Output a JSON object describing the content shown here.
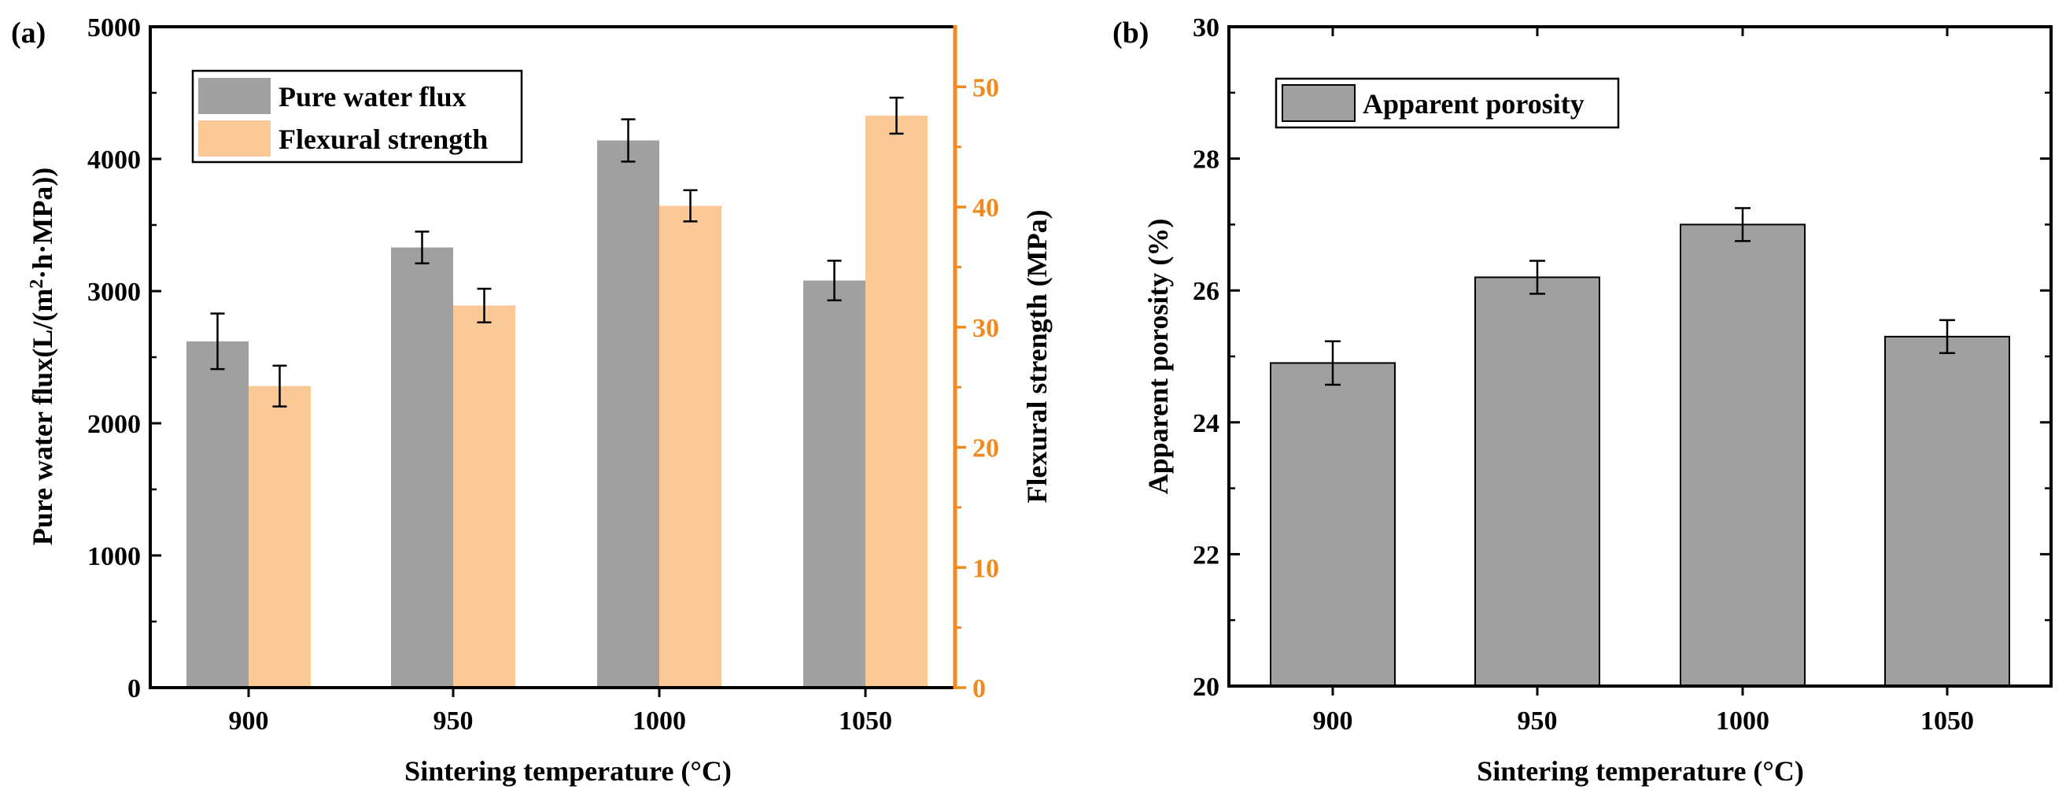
{
  "colors": {
    "gray_bar": "#a0a0a0",
    "orange_bar": "#fbc897",
    "orange_axis": "#f08a1e",
    "axis": "#000000"
  },
  "chart_data": [
    {
      "panel_label": "(a)",
      "type": "bar",
      "xlabel": "Sintering temperature (°C)",
      "categories": [
        "900",
        "950",
        "1000",
        "1050"
      ],
      "ylabel": "Pure water flux(L/(m²·h·MPa))",
      "ylim": [
        0,
        5000
      ],
      "yticks": [
        "0",
        "1000",
        "2000",
        "3000",
        "4000",
        "5000"
      ],
      "y2label": "Flexural strength (MPa)",
      "y2lim": [
        0,
        55
      ],
      "y2ticks": [
        "0",
        "10",
        "20",
        "30",
        "40",
        "50"
      ],
      "legend_position": "top-left",
      "series": [
        {
          "name": "Pure water flux",
          "axis": "left",
          "color": "#a0a0a0",
          "values": [
            2620,
            3330,
            4140,
            3080
          ],
          "errors": [
            210,
            120,
            160,
            150
          ]
        },
        {
          "name": "Flexural strength",
          "axis": "right",
          "color": "#fbc897",
          "values": [
            25.1,
            31.8,
            40.1,
            47.6
          ],
          "errors": [
            1.7,
            1.4,
            1.3,
            1.5
          ]
        }
      ]
    },
    {
      "panel_label": "(b)",
      "type": "bar",
      "xlabel": "Sintering temperature (°C)",
      "categories": [
        "900",
        "950",
        "1000",
        "1050"
      ],
      "ylabel": "Apparent porosity (%)",
      "ylim": [
        20,
        30
      ],
      "yticks": [
        "20",
        "22",
        "24",
        "26",
        "28",
        "30"
      ],
      "legend_position": "top-left",
      "series": [
        {
          "name": "Apparent porosity",
          "color": "#a0a0a0",
          "values": [
            24.9,
            26.2,
            27.0,
            25.3
          ],
          "errors": [
            0.33,
            0.25,
            0.25,
            0.25
          ]
        }
      ]
    }
  ]
}
